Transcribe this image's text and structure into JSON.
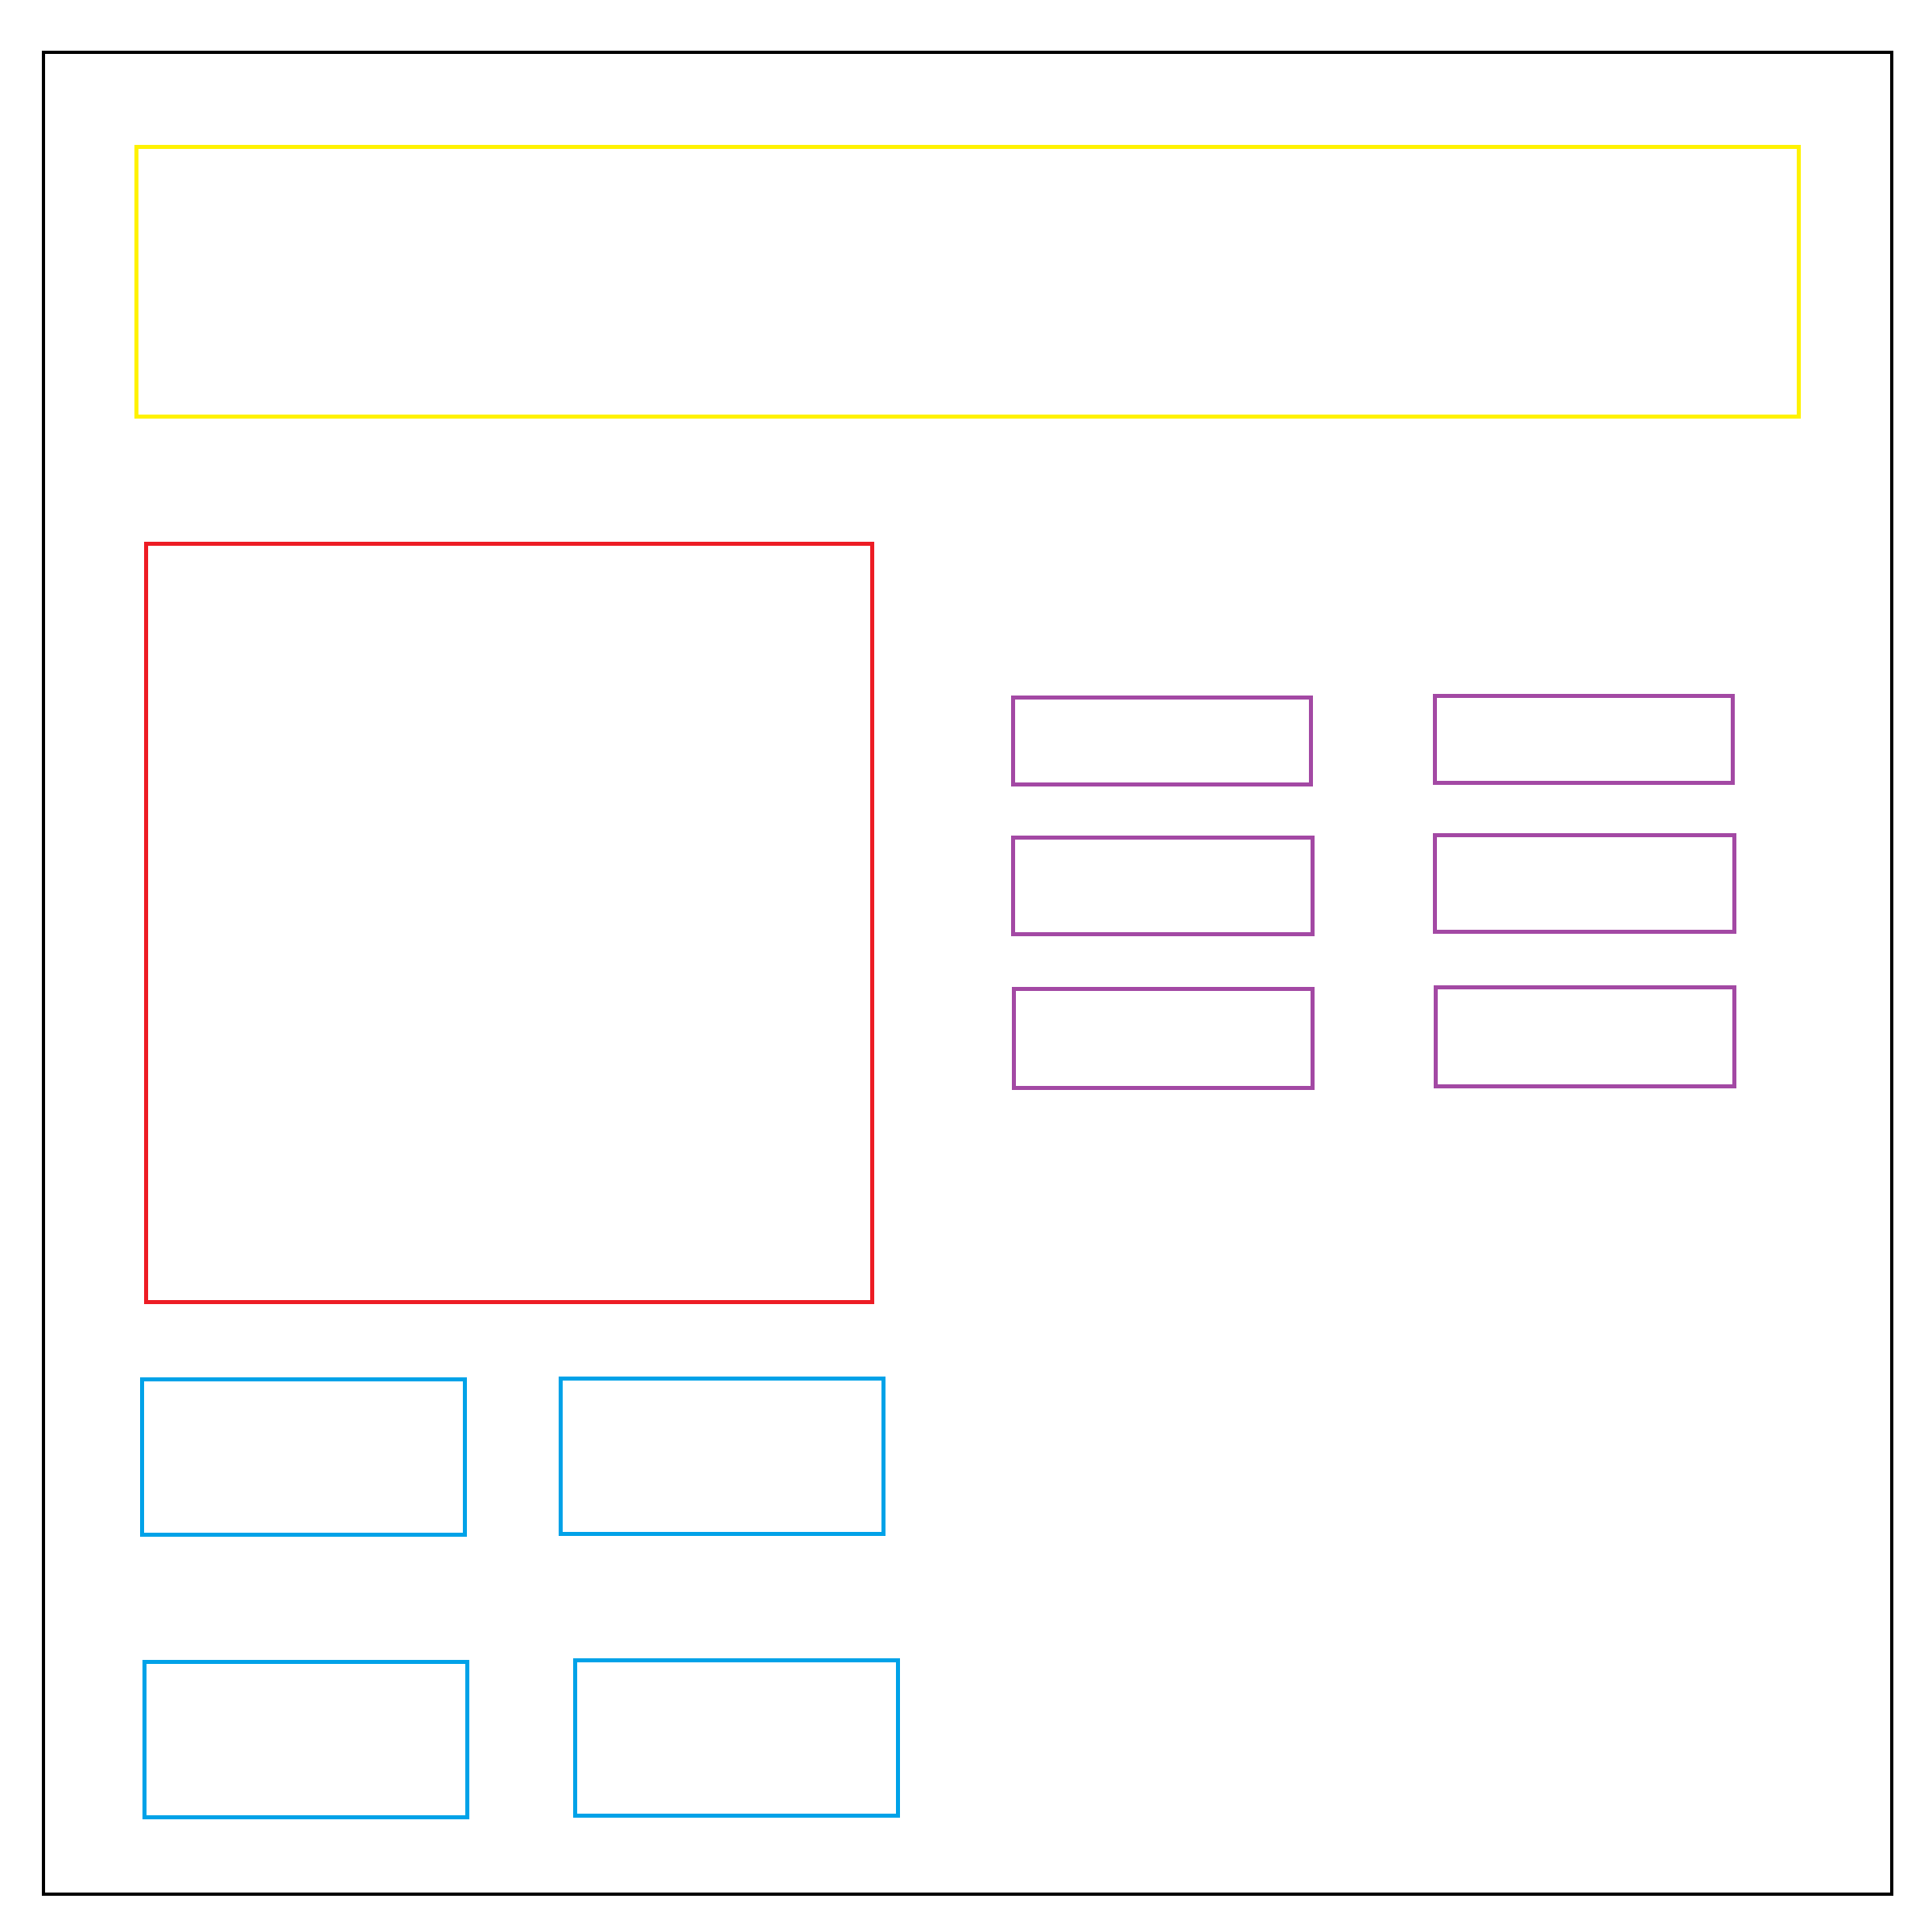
{
  "colors": {
    "frame": "#000000",
    "header": "#fff200",
    "hero": "#ed1c24",
    "option_boxes": "#a349a4",
    "tile_boxes": "#00a2e8",
    "background": "#ffffff"
  },
  "header": {
    "text": ""
  },
  "hero": {
    "text": ""
  },
  "option_boxes": [
    {
      "label": ""
    },
    {
      "label": ""
    },
    {
      "label": ""
    },
    {
      "label": ""
    },
    {
      "label": ""
    },
    {
      "label": ""
    }
  ],
  "tile_boxes": [
    {
      "label": ""
    },
    {
      "label": ""
    },
    {
      "label": ""
    },
    {
      "label": ""
    }
  ]
}
